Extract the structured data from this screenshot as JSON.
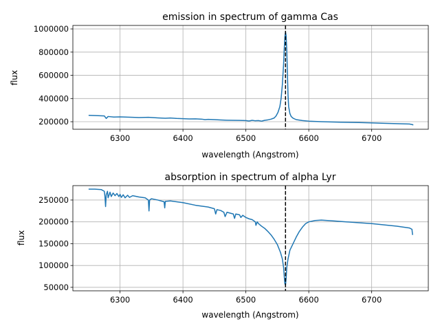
{
  "colors": {
    "series": "#1f77b4",
    "marker_line": "#000000",
    "grid": "#b0b0b0"
  },
  "chart_data": [
    {
      "type": "line",
      "title": "emission in spectrum of gamma Cas",
      "xlabel": "wavelength (Angstrom)",
      "ylabel": "flux",
      "xlim": [
        6225,
        6790
      ],
      "ylim": [
        135000,
        1030000
      ],
      "xticks": [
        6300,
        6400,
        6500,
        6600,
        6700
      ],
      "xtick_labels": [
        "6300",
        "6400",
        "6500",
        "6600",
        "6700"
      ],
      "yticks": [
        200000,
        400000,
        600000,
        800000,
        1000000
      ],
      "ytick_labels": [
        "200000",
        "400000",
        "600000",
        "800000",
        "1000000"
      ],
      "grid": true,
      "vline_x": 6563,
      "series": [
        {
          "x": [
            6250,
            6262,
            6275,
            6278,
            6281,
            6290,
            6300,
            6320,
            6330,
            6345,
            6360,
            6372,
            6380,
            6390,
            6400,
            6410,
            6420,
            6430,
            6435,
            6440,
            6450,
            6460,
            6470,
            6480,
            6490,
            6500,
            6505,
            6510,
            6515,
            6520,
            6525,
            6530,
            6535,
            6540,
            6545,
            6548,
            6551,
            6554,
            6556,
            6558,
            6560,
            6561,
            6562,
            6563,
            6564,
            6565,
            6566,
            6567,
            6568,
            6570,
            6572,
            6575,
            6580,
            6590,
            6600,
            6620,
            6650,
            6680,
            6700,
            6720,
            6740,
            6760,
            6765,
            6766
          ],
          "y": [
            255000,
            253000,
            250000,
            228000,
            245000,
            240000,
            242000,
            238000,
            236000,
            238000,
            233000,
            230000,
            232000,
            228000,
            226000,
            224000,
            225000,
            222000,
            218000,
            220000,
            218000,
            215000,
            213000,
            212000,
            211000,
            210000,
            206000,
            212000,
            208000,
            210000,
            205000,
            212000,
            216000,
            222000,
            232000,
            250000,
            280000,
            330000,
            400000,
            520000,
            700000,
            830000,
            930000,
            975000,
            940000,
            820000,
            620000,
            430000,
            330000,
            270000,
            245000,
            230000,
            218000,
            210000,
            205000,
            200000,
            196000,
            193000,
            190000,
            186000,
            183000,
            180000,
            175000,
            170000
          ]
        }
      ]
    },
    {
      "type": "line",
      "title": "absorption in spectrum of alpha Lyr",
      "xlabel": "wavelength (Angstrom)",
      "ylabel": "flux",
      "xlim": [
        6225,
        6790
      ],
      "ylim": [
        42000,
        283000
      ],
      "xticks": [
        6300,
        6400,
        6500,
        6600,
        6700
      ],
      "xtick_labels": [
        "6300",
        "6400",
        "6500",
        "6600",
        "6700"
      ],
      "yticks": [
        50000,
        100000,
        150000,
        200000,
        250000
      ],
      "ytick_labels": [
        "50000",
        "100000",
        "150000",
        "200000",
        "250000"
      ],
      "grid": true,
      "vline_x": 6563,
      "series": [
        {
          "x": [
            6250,
            6260,
            6270,
            6275,
            6276,
            6277,
            6278,
            6280,
            6281,
            6284,
            6286,
            6289,
            6292,
            6295,
            6298,
            6300,
            6302,
            6305,
            6308,
            6312,
            6315,
            6320,
            6330,
            6340,
            6345,
            6346,
            6347,
            6350,
            6360,
            6370,
            6371,
            6372,
            6380,
            6400,
            6420,
            6440,
            6450,
            6452,
            6454,
            6460,
            6465,
            6467,
            6470,
            6480,
            6482,
            6484,
            6490,
            6492,
            6495,
            6500,
            6505,
            6510,
            6515,
            6516,
            6518,
            6520,
            6525,
            6530,
            6535,
            6540,
            6545,
            6550,
            6555,
            6558,
            6560,
            6561,
            6562,
            6563,
            6564,
            6565,
            6567,
            6570,
            6575,
            6580,
            6585,
            6590,
            6595,
            6600,
            6610,
            6620,
            6640,
            6660,
            6680,
            6700,
            6720,
            6740,
            6760,
            6764,
            6765
          ],
          "y": [
            275000,
            275000,
            274000,
            270000,
            258000,
            235000,
            262000,
            270000,
            255000,
            268000,
            258000,
            266000,
            260000,
            265000,
            258000,
            263000,
            256000,
            262000,
            255000,
            261000,
            256000,
            260000,
            257000,
            255000,
            250000,
            225000,
            250000,
            253000,
            250000,
            246000,
            232000,
            247000,
            248000,
            244000,
            238000,
            234000,
            230000,
            218000,
            228000,
            226000,
            222000,
            212000,
            222000,
            218000,
            208000,
            218000,
            216000,
            210000,
            215000,
            210000,
            207000,
            205000,
            200000,
            192000,
            200000,
            196000,
            190000,
            185000,
            178000,
            170000,
            160000,
            148000,
            130000,
            115000,
            95000,
            75000,
            58000,
            55000,
            70000,
            95000,
            115000,
            135000,
            150000,
            165000,
            178000,
            188000,
            196000,
            200000,
            203000,
            204000,
            202000,
            200000,
            198000,
            196000,
            193000,
            190000,
            186000,
            183000,
            170000
          ]
        }
      ]
    }
  ]
}
